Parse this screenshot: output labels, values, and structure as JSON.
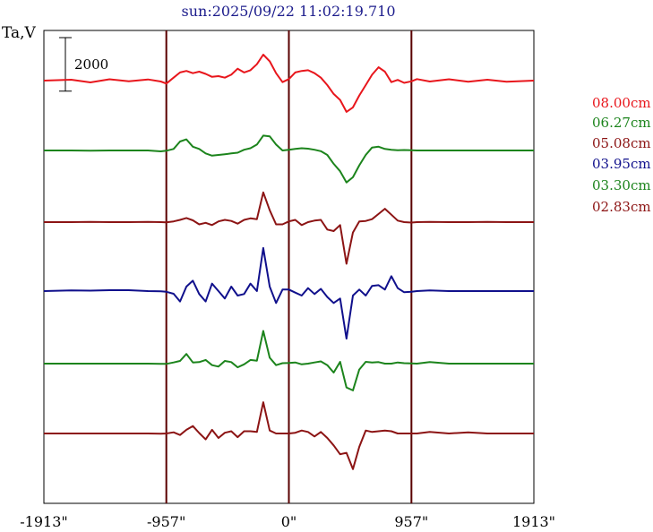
{
  "chart_data": {
    "type": "line",
    "title": "sun:2025/09/22 11:02:19.710",
    "ylabel": "Ta,V",
    "xlabel": "",
    "xlim": [
      -1913,
      1913
    ],
    "x_ticks": [
      "-1913\"",
      "-957\"",
      "0\"",
      "957\"",
      "1913\""
    ],
    "x_tick_values": [
      -1913,
      -957,
      0,
      957,
      1913
    ],
    "vertical_lines": [
      -957,
      0,
      957
    ],
    "scale_bar": {
      "label": "2000",
      "value": 2000
    },
    "grid": false,
    "legend_position": "right",
    "colors": {
      "red": "#e8161c",
      "green": "#1c841c",
      "maroon": "#8c1414",
      "navy": "#10108c",
      "title": "#1c1c8c"
    },
    "x": [
      -1913,
      -1700,
      -1550,
      -1400,
      -1250,
      -1100,
      -1000,
      -957,
      -900,
      -850,
      -800,
      -750,
      -700,
      -650,
      -600,
      -550,
      -500,
      -450,
      -400,
      -350,
      -300,
      -250,
      -200,
      -150,
      -100,
      -50,
      0,
      50,
      100,
      150,
      200,
      250,
      300,
      350,
      400,
      450,
      500,
      550,
      600,
      650,
      700,
      750,
      800,
      850,
      900,
      957,
      1000,
      1100,
      1250,
      1400,
      1550,
      1700,
      1913
    ],
    "series": [
      {
        "name": "08.00cm",
        "color": "#e8161c",
        "values": [
          0,
          60,
          -120,
          90,
          -40,
          80,
          -60,
          -200,
          200,
          550,
          650,
          500,
          600,
          450,
          250,
          300,
          200,
          400,
          800,
          550,
          700,
          1100,
          1750,
          1300,
          500,
          -100,
          100,
          550,
          650,
          700,
          500,
          200,
          -300,
          -900,
          -1300,
          -2100,
          -1800,
          -1000,
          -300,
          400,
          900,
          600,
          -100,
          50,
          -150,
          -50,
          100,
          -60,
          90,
          -80,
          60,
          -80,
          0
        ]
      },
      {
        "name": "06.27cm",
        "color": "#1c841c",
        "values": [
          0,
          0,
          -20,
          0,
          0,
          0,
          -60,
          -20,
          100,
          600,
          750,
          250,
          100,
          -200,
          -350,
          -300,
          -250,
          -200,
          -150,
          50,
          150,
          400,
          1000,
          950,
          400,
          0,
          50,
          100,
          150,
          120,
          50,
          -50,
          -300,
          -900,
          -1400,
          -2150,
          -1800,
          -1000,
          -300,
          200,
          250,
          100,
          50,
          20,
          30,
          10,
          0,
          0,
          0,
          0,
          0,
          0,
          0
        ]
      },
      {
        "name": "05.08cm",
        "color": "#8c1414",
        "values": [
          0,
          0,
          20,
          0,
          0,
          10,
          0,
          -20,
          50,
          150,
          280,
          120,
          -150,
          -50,
          -200,
          50,
          150,
          80,
          -100,
          150,
          250,
          200,
          2000,
          800,
          -150,
          -150,
          50,
          150,
          -200,
          0,
          100,
          150,
          -500,
          -600,
          -200,
          -2800,
          -700,
          50,
          80,
          200,
          550,
          900,
          500,
          100,
          0,
          -30,
          0,
          20,
          0,
          0,
          20,
          0,
          0
        ]
      },
      {
        "name": "03.95cm",
        "color": "#10108c",
        "values": [
          0,
          50,
          30,
          60,
          60,
          0,
          -20,
          -50,
          -180,
          -700,
          300,
          700,
          -200,
          -700,
          500,
          0,
          -500,
          300,
          -300,
          -200,
          500,
          0,
          2900,
          300,
          -800,
          100,
          100,
          -100,
          -300,
          200,
          -200,
          150,
          -400,
          -800,
          -500,
          -3200,
          -300,
          100,
          -300,
          350,
          400,
          100,
          1000,
          200,
          -80,
          -50,
          0,
          40,
          0,
          0,
          0,
          0,
          0
        ]
      },
      {
        "name": "03.30cm",
        "color": "#1c841c",
        "values": [
          0,
          0,
          0,
          0,
          0,
          0,
          -20,
          -20,
          80,
          180,
          650,
          80,
          100,
          250,
          -100,
          -200,
          180,
          100,
          -250,
          -50,
          250,
          200,
          2200,
          400,
          -100,
          30,
          50,
          80,
          -50,
          0,
          80,
          150,
          -100,
          -600,
          120,
          -1600,
          -1800,
          -400,
          120,
          80,
          100,
          0,
          0,
          80,
          30,
          20,
          0,
          100,
          0,
          0,
          0,
          0,
          0
        ]
      },
      {
        "name": "02.83cm",
        "color": "#8c1414",
        "values": [
          0,
          0,
          0,
          0,
          0,
          0,
          -20,
          0,
          80,
          -100,
          250,
          500,
          30,
          -400,
          250,
          -300,
          50,
          150,
          -250,
          150,
          150,
          100,
          2100,
          200,
          0,
          0,
          0,
          50,
          200,
          100,
          -200,
          100,
          -300,
          -800,
          -1400,
          -1300,
          -2400,
          -900,
          200,
          100,
          150,
          200,
          150,
          0,
          0,
          0,
          0,
          100,
          0,
          80,
          0,
          0,
          0
        ]
      }
    ]
  }
}
